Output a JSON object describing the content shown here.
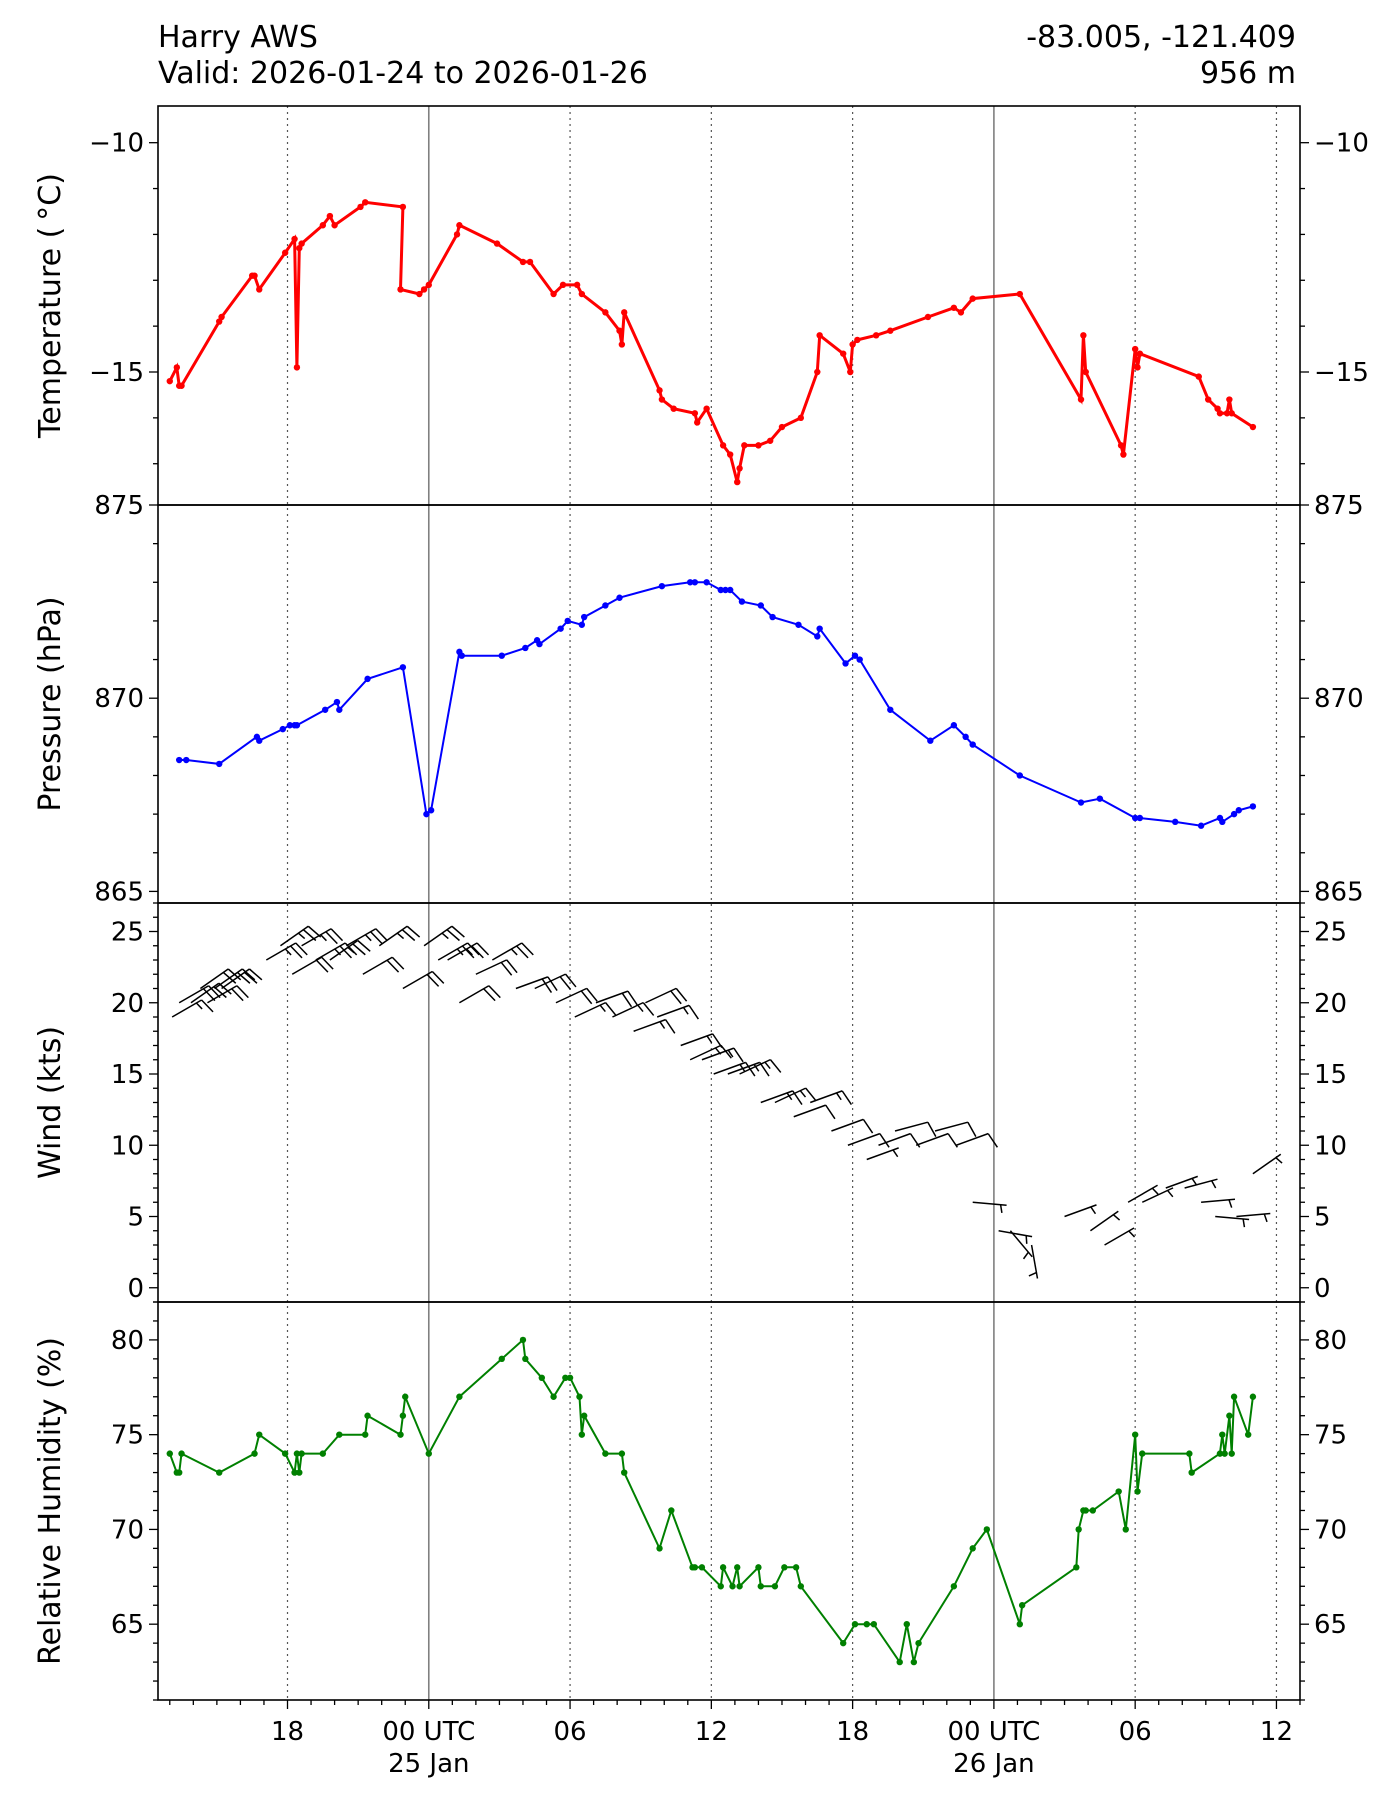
{
  "header": {
    "station": "Harry AWS",
    "valid": "Valid: 2026-01-24 to 2026-01-26",
    "coords": "-83.005, -121.409",
    "elevation": "956 m"
  },
  "x_ticks": [
    {
      "hour": 18,
      "label": "18",
      "sublabel": "",
      "major": false
    },
    {
      "hour": 24,
      "label": "00 UTC",
      "sublabel": "25 Jan",
      "major": true
    },
    {
      "hour": 30,
      "label": "06",
      "sublabel": "",
      "major": false
    },
    {
      "hour": 36,
      "label": "12",
      "sublabel": "",
      "major": false
    },
    {
      "hour": 42,
      "label": "18",
      "sublabel": "",
      "major": false
    },
    {
      "hour": 48,
      "label": "00 UTC",
      "sublabel": "26 Jan",
      "major": true
    },
    {
      "hour": 54,
      "label": "06",
      "sublabel": "",
      "major": false
    },
    {
      "hour": 60,
      "label": "12",
      "sublabel": "",
      "major": false
    }
  ],
  "colors": {
    "temperature": "#ff0000",
    "pressure": "#0000ff",
    "wind": "#000000",
    "humidity": "#008000"
  },
  "chart_data": [
    {
      "type": "line",
      "ylabel": "Temperature ($^\\circ$C)",
      "ylabel_display": "Temperature ( °C)",
      "ylim": [
        -17.9,
        -9.2
      ],
      "yticks": [
        -10,
        -15
      ],
      "minor_step": 1,
      "x_unit": "hours since 2026-01-24 00 UTC",
      "x": [
        13.0,
        13.3,
        13.4,
        13.5,
        15.1,
        15.2,
        16.5,
        16.6,
        16.8,
        17.9,
        18.3,
        18.4,
        18.5,
        18.6,
        19.5,
        19.8,
        20.0,
        21.1,
        21.3,
        22.9,
        22.8,
        23.6,
        23.8,
        24.0,
        25.2,
        25.3,
        26.9,
        28.0,
        28.3,
        29.3,
        29.7,
        30.3,
        30.5,
        31.5,
        32.1,
        32.2,
        32.3,
        33.8,
        33.9,
        34.4,
        35.3,
        35.4,
        35.8,
        36.5,
        36.8,
        37.1,
        37.2,
        37.4,
        38.0,
        38.5,
        39.0,
        39.8,
        40.5,
        40.6,
        41.6,
        41.9,
        42.0,
        42.2,
        43.0,
        43.6,
        45.2,
        46.3,
        46.6,
        47.1,
        49.1,
        51.7,
        51.8,
        51.9,
        53.4,
        53.5,
        54.0,
        54.1,
        54.2,
        56.7,
        57.1,
        57.5,
        57.6,
        57.9,
        58.0,
        58.1,
        59.0
      ],
      "y": [
        -15.2,
        -14.9,
        -15.3,
        -15.3,
        -13.9,
        -13.8,
        -12.9,
        -12.9,
        -13.2,
        -12.4,
        -12.1,
        -14.9,
        -12.3,
        -12.2,
        -11.8,
        -11.6,
        -11.8,
        -11.4,
        -11.3,
        -11.4,
        -13.2,
        -13.3,
        -13.2,
        -13.1,
        -12.0,
        -11.8,
        -12.2,
        -12.6,
        -12.6,
        -13.3,
        -13.1,
        -13.1,
        -13.3,
        -13.7,
        -14.1,
        -14.4,
        -13.7,
        -15.4,
        -15.6,
        -15.8,
        -15.9,
        -16.1,
        -15.8,
        -16.6,
        -16.8,
        -17.4,
        -17.1,
        -16.6,
        -16.6,
        -16.5,
        -16.2,
        -16.0,
        -15.0,
        -14.2,
        -14.6,
        -15.0,
        -14.4,
        -14.3,
        -14.2,
        -14.1,
        -13.8,
        -13.6,
        -13.7,
        -13.4,
        -13.3,
        -15.6,
        -14.2,
        -15.0,
        -16.6,
        -16.8,
        -14.5,
        -14.9,
        -14.6,
        -15.1,
        -15.6,
        -15.8,
        -15.9,
        -15.9,
        -15.6,
        -15.9,
        -16.2
      ]
    },
    {
      "type": "line",
      "ylabel": "Pressure (hPa)",
      "ylim": [
        864.7,
        875.0
      ],
      "yticks": [
        875,
        870,
        865
      ],
      "minor_step": 1,
      "x_unit": "hours since 2026-01-24 00 UTC",
      "x": [
        13.4,
        13.7,
        15.1,
        16.7,
        16.8,
        17.8,
        18.1,
        18.3,
        18.4,
        19.6,
        20.1,
        20.2,
        21.4,
        22.9,
        23.9,
        24.1,
        25.3,
        25.4,
        27.1,
        28.1,
        28.6,
        28.7,
        29.6,
        29.9,
        30.5,
        30.6,
        31.5,
        32.1,
        33.9,
        35.1,
        35.3,
        35.8,
        36.4,
        36.6,
        36.8,
        37.3,
        38.1,
        38.6,
        39.7,
        40.5,
        40.6,
        41.7,
        42.1,
        42.3,
        43.6,
        45.3,
        46.3,
        46.8,
        47.1,
        49.1,
        51.7,
        52.5,
        54.0,
        54.2,
        55.7,
        56.8,
        57.6,
        57.7,
        58.2,
        58.4,
        59.0
      ],
      "y": [
        868.4,
        868.4,
        868.3,
        869.0,
        868.9,
        869.2,
        869.3,
        869.3,
        869.3,
        869.7,
        869.9,
        869.7,
        870.5,
        870.8,
        867.0,
        867.1,
        871.2,
        871.1,
        871.1,
        871.3,
        871.5,
        871.4,
        871.8,
        872.0,
        871.9,
        872.1,
        872.4,
        872.6,
        872.9,
        873.0,
        873.0,
        873.0,
        872.8,
        872.8,
        872.8,
        872.5,
        872.4,
        872.1,
        871.9,
        871.6,
        871.8,
        870.9,
        871.1,
        871.0,
        869.7,
        868.9,
        869.3,
        869.0,
        868.8,
        868.0,
        867.3,
        867.4,
        866.9,
        866.9,
        866.8,
        866.7,
        866.9,
        866.8,
        867.0,
        867.1,
        867.2
      ]
    },
    {
      "type": "scatter",
      "marker": "wind-barb",
      "ylabel": "Wind (kts)",
      "ylim": [
        -1,
        27
      ],
      "yticks": [
        0,
        5,
        10,
        15,
        20,
        25
      ],
      "minor_step": 1,
      "x_unit": "hours since 2026-01-24 00 UTC",
      "x": [
        13.1,
        13.4,
        13.9,
        14.3,
        14.6,
        14.9,
        15.2,
        17.1,
        17.7,
        18.2,
        18.6,
        19.2,
        19.8,
        20.5,
        21.2,
        21.9,
        22.9,
        23.8,
        24.4,
        24.8,
        25.3,
        26.0,
        26.7,
        27.7,
        28.5,
        29.4,
        30.2,
        31.1,
        31.8,
        32.7,
        33.2,
        33.7,
        34.7,
        35.1,
        35.6,
        36.1,
        36.7,
        37.2,
        38.1,
        38.7,
        39.5,
        40.2,
        41.1,
        41.8,
        42.6,
        43.1,
        43.8,
        44.7,
        45.5,
        46.4,
        47.1,
        48.2,
        48.7,
        49.6,
        51.0,
        52.1,
        52.7,
        53.7,
        54.3,
        55.3,
        56.1,
        56.8,
        57.4,
        58.3,
        59.0
      ],
      "y": [
        19,
        20,
        20,
        21,
        20,
        21,
        21,
        23,
        24,
        22,
        24,
        23,
        23,
        24,
        22,
        24,
        21,
        24,
        23,
        23,
        20,
        22,
        23,
        21,
        21,
        20,
        19,
        20,
        19,
        18,
        20,
        19,
        17,
        16,
        16,
        15,
        15,
        15,
        13,
        13,
        12,
        13,
        11,
        10,
        9,
        10,
        11,
        10,
        11,
        10,
        6,
        4,
        4,
        3,
        5,
        4,
        3,
        6,
        6,
        7,
        7,
        6,
        5,
        5,
        8
      ],
      "direction_deg": [
        60,
        60,
        55,
        55,
        60,
        55,
        55,
        60,
        55,
        60,
        60,
        60,
        55,
        60,
        60,
        55,
        60,
        55,
        60,
        60,
        60,
        65,
        60,
        70,
        65,
        65,
        65,
        70,
        65,
        70,
        65,
        70,
        70,
        65,
        70,
        70,
        70,
        65,
        70,
        65,
        70,
        70,
        70,
        70,
        70,
        70,
        75,
        70,
        75,
        70,
        95,
        100,
        140,
        170,
        70,
        55,
        60,
        60,
        65,
        70,
        75,
        85,
        95,
        85,
        55
      ]
    },
    {
      "type": "line",
      "ylabel": "Relative Humidity (%)",
      "ylim": [
        61,
        82
      ],
      "yticks": [
        80,
        75,
        70,
        65
      ],
      "minor_step": 1,
      "x_unit": "hours since 2026-01-24 00 UTC",
      "x": [
        13.0,
        13.3,
        13.4,
        13.5,
        15.1,
        16.6,
        16.8,
        17.9,
        18.3,
        18.4,
        18.5,
        18.6,
        19.5,
        20.2,
        21.3,
        21.4,
        22.8,
        22.9,
        23.0,
        24.0,
        25.3,
        27.1,
        28.0,
        28.1,
        28.8,
        29.3,
        29.8,
        30.0,
        30.4,
        30.5,
        30.6,
        31.5,
        32.2,
        32.3,
        33.8,
        34.3,
        35.2,
        35.3,
        35.6,
        36.4,
        36.5,
        36.9,
        37.1,
        37.2,
        38.0,
        38.1,
        38.7,
        39.1,
        39.6,
        39.8,
        41.6,
        42.1,
        42.6,
        42.9,
        44.0,
        44.3,
        44.6,
        44.8,
        46.3,
        47.1,
        47.7,
        49.1,
        49.2,
        51.5,
        51.6,
        51.8,
        51.9,
        52.2,
        53.3,
        53.6,
        54.0,
        54.1,
        54.3,
        56.3,
        56.4,
        57.6,
        57.7,
        57.8,
        58.0,
        58.1,
        58.2,
        58.8,
        59.0
      ],
      "y": [
        74,
        73,
        73,
        74,
        73,
        74,
        75,
        74,
        73,
        74,
        73,
        74,
        74,
        75,
        75,
        76,
        75,
        76,
        77,
        74,
        77,
        79,
        80,
        79,
        78,
        77,
        78,
        78,
        77,
        75,
        76,
        74,
        74,
        73,
        69,
        71,
        68,
        68,
        68,
        67,
        68,
        67,
        68,
        67,
        68,
        67,
        67,
        68,
        68,
        67,
        64,
        65,
        65,
        65,
        63,
        65,
        63,
        64,
        67,
        69,
        70,
        65,
        66,
        68,
        70,
        71,
        71,
        71,
        72,
        70,
        75,
        72,
        74,
        74,
        73,
        74,
        75,
        74,
        76,
        74,
        77,
        75,
        77
      ]
    }
  ]
}
